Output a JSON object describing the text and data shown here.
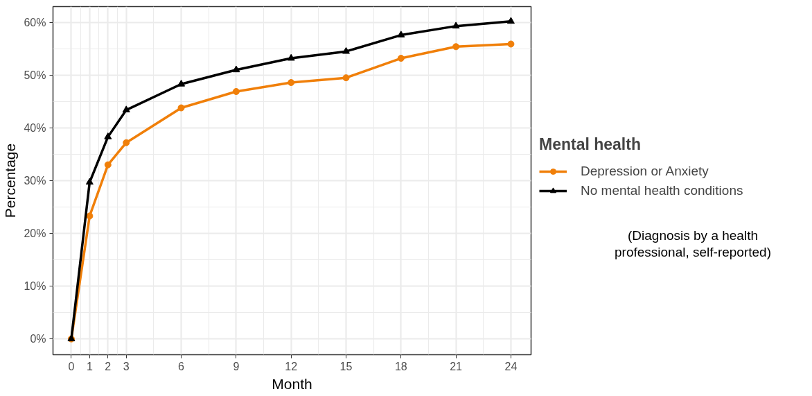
{
  "chart_data": {
    "type": "line",
    "xlabel": "Month",
    "ylabel": "Percentage",
    "legend_title": "Mental health",
    "x": [
      0,
      1,
      2,
      3,
      6,
      9,
      12,
      15,
      18,
      21,
      24
    ],
    "series": [
      {
        "name": "Depression or Anxiety",
        "color": "#f07f09",
        "marker": "circle",
        "values": [
          0,
          23.3,
          33.0,
          37.2,
          43.8,
          46.9,
          48.6,
          49.5,
          53.2,
          55.4,
          55.9
        ]
      },
      {
        "name": "No mental health conditions",
        "color": "#000000",
        "marker": "triangle",
        "values": [
          0,
          29.7,
          38.3,
          43.4,
          48.3,
          51.0,
          53.2,
          54.5,
          57.6,
          59.3,
          60.2
        ]
      }
    ],
    "xlim": [
      -1,
      25.1
    ],
    "ylim": [
      -3,
      63
    ],
    "xticks": [
      0,
      1,
      2,
      3,
      6,
      9,
      12,
      15,
      18,
      21,
      24
    ],
    "yticks": [
      {
        "value": 0,
        "label": "0%"
      },
      {
        "value": 10,
        "label": "10%"
      },
      {
        "value": 20,
        "label": "20%"
      },
      {
        "value": 30,
        "label": "30%"
      },
      {
        "value": 40,
        "label": "40%"
      },
      {
        "value": 50,
        "label": "50%"
      },
      {
        "value": 60,
        "label": "60%"
      }
    ],
    "annotations": [
      "(Diagnosis by a health\nprofessional, self-reported)"
    ],
    "grid": true,
    "legend": "right",
    "line_style": "solid"
  }
}
